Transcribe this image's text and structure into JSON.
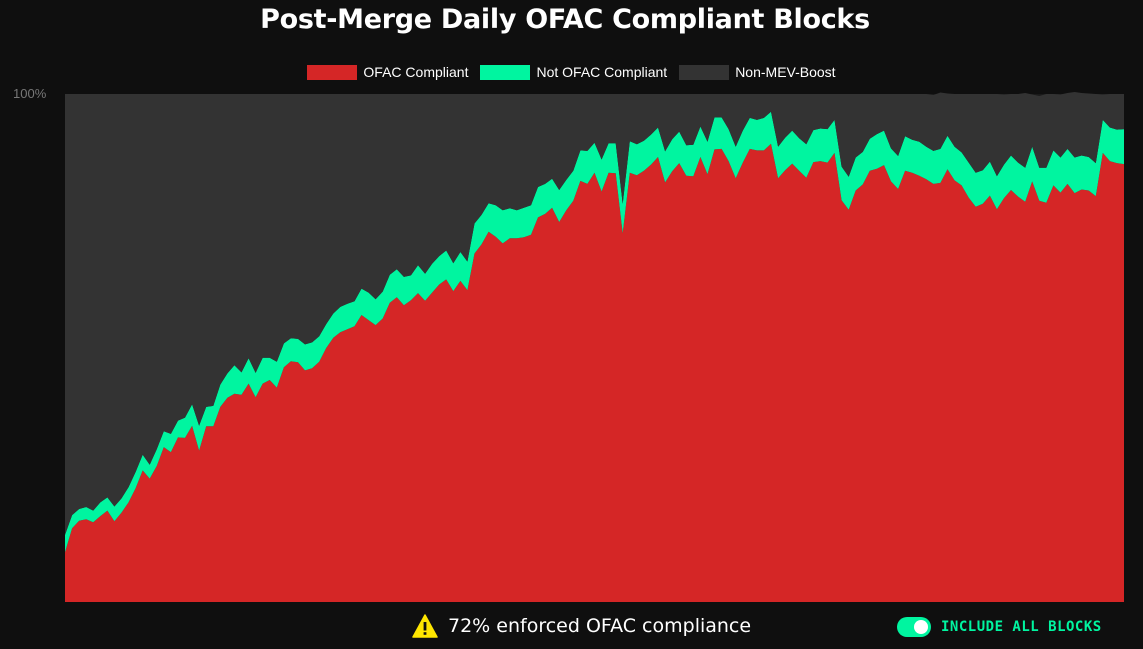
{
  "colors": {
    "ofac": "#d52626",
    "non_ofac": "#00f5a0",
    "non_mev": "#333333",
    "background": "#0f0f0f",
    "accent": "#00f5a0",
    "warning": "#ffe600"
  },
  "chart_data": {
    "type": "area",
    "stacked": true,
    "title": "Post-Merge Daily OFAC Compliant Blocks",
    "ylim": [
      0,
      100
    ],
    "y_tick_labels": [
      "100%"
    ],
    "legend_position": "top-center",
    "grid": false,
    "x": [
      0,
      1,
      2,
      3,
      4,
      5,
      6,
      7,
      8,
      9,
      10,
      11,
      12,
      13,
      14,
      15,
      16,
      17,
      18,
      19,
      20,
      21,
      22,
      23,
      24,
      25,
      26,
      27,
      28,
      29,
      30,
      31,
      32,
      33,
      34,
      35,
      36,
      37,
      38,
      39,
      40,
      41,
      42,
      43,
      44,
      45,
      46,
      47,
      48,
      49,
      50,
      51,
      52,
      53,
      54,
      55,
      56,
      57,
      58,
      59,
      60,
      61,
      62,
      63,
      64,
      65,
      66,
      67,
      68,
      69,
      70,
      71,
      72,
      73,
      74,
      75,
      76,
      77,
      78,
      79,
      80,
      81,
      82,
      83,
      84,
      85,
      86,
      87,
      88,
      89,
      90,
      91,
      92,
      93,
      94,
      95,
      96,
      97,
      98,
      99,
      100,
      101,
      102,
      103,
      104,
      105,
      106,
      107,
      108,
      109,
      110,
      111,
      112,
      113,
      114,
      115,
      116,
      117,
      118,
      119,
      120,
      121,
      122,
      123,
      124,
      125,
      126,
      127,
      128,
      129,
      130,
      131,
      132,
      133,
      134,
      135,
      136,
      137,
      138,
      139,
      140,
      141,
      142,
      143,
      144,
      145,
      146,
      147,
      148,
      149,
      150
    ],
    "series": [
      {
        "name": "OFAC Compliant",
        "values": [
          9.8,
          14.5,
          16.0,
          16.3,
          15.7,
          16.9,
          18.0,
          15.9,
          17.6,
          19.6,
          22.4,
          25.9,
          24.3,
          26.8,
          30.5,
          29.5,
          32.4,
          32.3,
          34.7,
          29.8,
          34.6,
          34.6,
          38.4,
          40.2,
          41.0,
          40.8,
          43.0,
          40.3,
          43.0,
          43.7,
          42.2,
          46.2,
          47.4,
          47.2,
          45.6,
          46.0,
          47.3,
          50.0,
          52.0,
          53.1,
          53.7,
          54.3,
          56.5,
          55.5,
          54.5,
          55.8,
          58.9,
          60.0,
          58.4,
          59.4,
          60.8,
          59.3,
          60.9,
          62.5,
          63.5,
          61.2,
          63.2,
          61.4,
          68.6,
          70.4,
          72.9,
          71.9,
          70.6,
          71.6,
          71.6,
          71.8,
          72.3,
          75.7,
          76.4,
          77.6,
          74.8,
          77.1,
          79.0,
          82.9,
          82.3,
          84.5,
          80.8,
          84.5,
          84.4,
          72.6,
          84.5,
          84.0,
          84.9,
          86.1,
          87.6,
          82.6,
          84.8,
          86.4,
          83.9,
          83.8,
          87.6,
          84.2,
          89.1,
          89.2,
          86.8,
          83.4,
          86.5,
          89.2,
          88.9,
          88.9,
          90.2,
          83.4,
          85.0,
          86.3,
          84.9,
          83.5,
          86.6,
          86.8,
          86.5,
          88.4,
          79.1,
          77.2,
          81.0,
          82.2,
          84.9,
          85.3,
          86.0,
          82.8,
          81.3,
          84.9,
          84.5,
          83.9,
          83.2,
          82.3,
          82.5,
          85.2,
          83.0,
          82.0,
          79.6,
          77.8,
          78.4,
          80.0,
          77.3,
          79.5,
          81.1,
          79.8,
          78.8,
          82.8,
          79.0,
          78.6,
          82.0,
          80.6,
          82.3,
          80.5,
          81.2,
          81.0,
          79.9,
          88.4,
          86.8,
          86.4,
          86.2
        ],
        "color": "#d52626"
      },
      {
        "name": "Not OFAC Compliant",
        "values": [
          3.4,
          2.6,
          2.3,
          2.4,
          2.3,
          2.7,
          2.6,
          2.9,
          2.8,
          3.0,
          3.2,
          3.1,
          2.7,
          3.3,
          3.1,
          3.6,
          3.3,
          4.0,
          4.2,
          4.9,
          3.8,
          4.0,
          4.4,
          4.8,
          5.6,
          4.4,
          5.0,
          4.8,
          5.1,
          4.4,
          5.1,
          4.7,
          4.5,
          4.6,
          5.1,
          5.1,
          5.0,
          4.7,
          4.8,
          5.0,
          5.0,
          4.9,
          5.2,
          5.4,
          5.1,
          5.3,
          5.5,
          5.5,
          5.6,
          4.9,
          5.5,
          5.3,
          5.7,
          5.6,
          5.7,
          5.5,
          5.7,
          5.6,
          5.9,
          5.8,
          5.6,
          6.2,
          6.5,
          5.9,
          5.5,
          5.8,
          5.8,
          6.0,
          5.9,
          5.7,
          6.3,
          6.0,
          5.9,
          6.0,
          6.5,
          5.9,
          6.3,
          5.8,
          5.9,
          5.8,
          6.2,
          6.1,
          5.9,
          5.9,
          5.8,
          6.1,
          6.3,
          6.2,
          6.0,
          6.2,
          6.0,
          6.4,
          6.3,
          6.2,
          6.3,
          6.2,
          6.3,
          6.1,
          6.0,
          6.4,
          6.3,
          6.2,
          6.4,
          6.5,
          6.4,
          6.6,
          6.3,
          6.4,
          6.6,
          6.5,
          6.6,
          6.5,
          6.5,
          6.4,
          6.3,
          6.8,
          6.8,
          6.5,
          6.5,
          6.8,
          6.5,
          6.7,
          6.4,
          6.5,
          6.7,
          6.6,
          6.6,
          6.5,
          6.9,
          6.7,
          6.6,
          6.7,
          6.5,
          6.6,
          6.8,
          6.7,
          6.7,
          6.8,
          6.5,
          6.9,
          6.9,
          6.9,
          6.9,
          7.0,
          6.7,
          6.6,
          6.5,
          6.5,
          6.6,
          6.6,
          6.9
        ],
        "color": "#00f5a0"
      },
      {
        "name": "Non-MEV-Boost",
        "values": [
          86.8,
          82.9,
          81.7,
          81.3,
          82.0,
          80.4,
          79.4,
          81.2,
          79.6,
          77.4,
          74.4,
          71.0,
          73.0,
          69.9,
          66.4,
          66.9,
          64.3,
          63.7,
          61.1,
          65.3,
          61.6,
          61.4,
          57.2,
          55.0,
          53.4,
          54.8,
          52.0,
          54.9,
          51.9,
          51.9,
          52.7,
          49.1,
          48.1,
          48.2,
          49.3,
          48.9,
          47.7,
          45.3,
          43.2,
          41.9,
          41.3,
          40.8,
          38.3,
          39.1,
          40.4,
          38.9,
          35.6,
          34.5,
          36.0,
          35.7,
          33.7,
          35.4,
          33.4,
          31.9,
          30.8,
          33.3,
          31.1,
          33.0,
          25.5,
          23.8,
          21.5,
          21.9,
          22.9,
          22.5,
          22.9,
          22.4,
          21.9,
          18.3,
          17.7,
          16.7,
          18.9,
          16.9,
          15.1,
          11.1,
          11.2,
          9.6,
          12.9,
          9.7,
          9.7,
          21.6,
          9.3,
          9.9,
          9.2,
          8.0,
          6.6,
          11.3,
          8.9,
          7.4,
          10.1,
          10.0,
          6.4,
          9.4,
          4.6,
          4.6,
          6.9,
          10.4,
          7.2,
          4.7,
          5.1,
          4.7,
          3.5,
          10.4,
          8.6,
          7.2,
          8.7,
          9.9,
          7.1,
          6.8,
          6.9,
          5.1,
          14.3,
          16.3,
          12.5,
          11.4,
          8.8,
          7.9,
          7.2,
          10.7,
          12.2,
          8.3,
          9.0,
          9.4,
          10.4,
          11.0,
          11.1,
          8.3,
          10.4,
          11.5,
          13.5,
          15.5,
          15.0,
          13.3,
          16.2,
          13.8,
          12.1,
          13.5,
          14.7,
          10.3,
          14.1,
          14.5,
          11.1,
          12.4,
          11.0,
          12.9,
          12.3,
          12.5,
          13.6,
          5.0,
          6.6,
          7.0,
          6.9
        ],
        "color": "#333333"
      }
    ]
  },
  "footer": {
    "compliance_text": "72% enforced OFAC compliance",
    "toggle_label": "INCLUDE ALL BLOCKS",
    "toggle_on": true,
    "warning_icon": "warning-triangle-icon"
  }
}
